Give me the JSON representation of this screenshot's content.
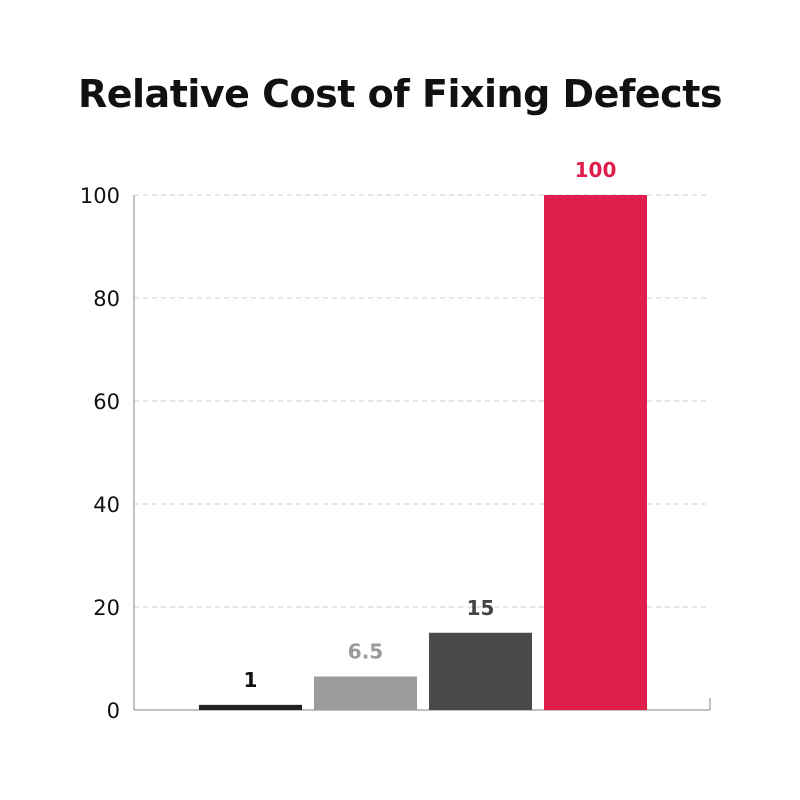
{
  "chart_data": {
    "type": "bar",
    "title": "Relative Cost of Fixing Defects",
    "categories": [
      "",
      "",
      "",
      ""
    ],
    "values": [
      1,
      6.5,
      15,
      100
    ],
    "data_labels": [
      "1",
      "6.5",
      "15",
      "100"
    ],
    "bar_colors": [
      "#222222",
      "#9b9b9b",
      "#4a4a4a",
      "#e01e4b"
    ],
    "label_colors": [
      "#111111",
      "#9b9b9b",
      "#444444",
      "#e01e4b"
    ],
    "ylim": [
      0,
      100
    ],
    "yticks": [
      0,
      20,
      40,
      60,
      80,
      100
    ],
    "ytick_labels": [
      "0",
      "20",
      "40",
      "60",
      "80",
      "100"
    ],
    "xlabel": "",
    "ylabel": "",
    "grid": true,
    "grid_style": "dashed",
    "legend": "none"
  }
}
